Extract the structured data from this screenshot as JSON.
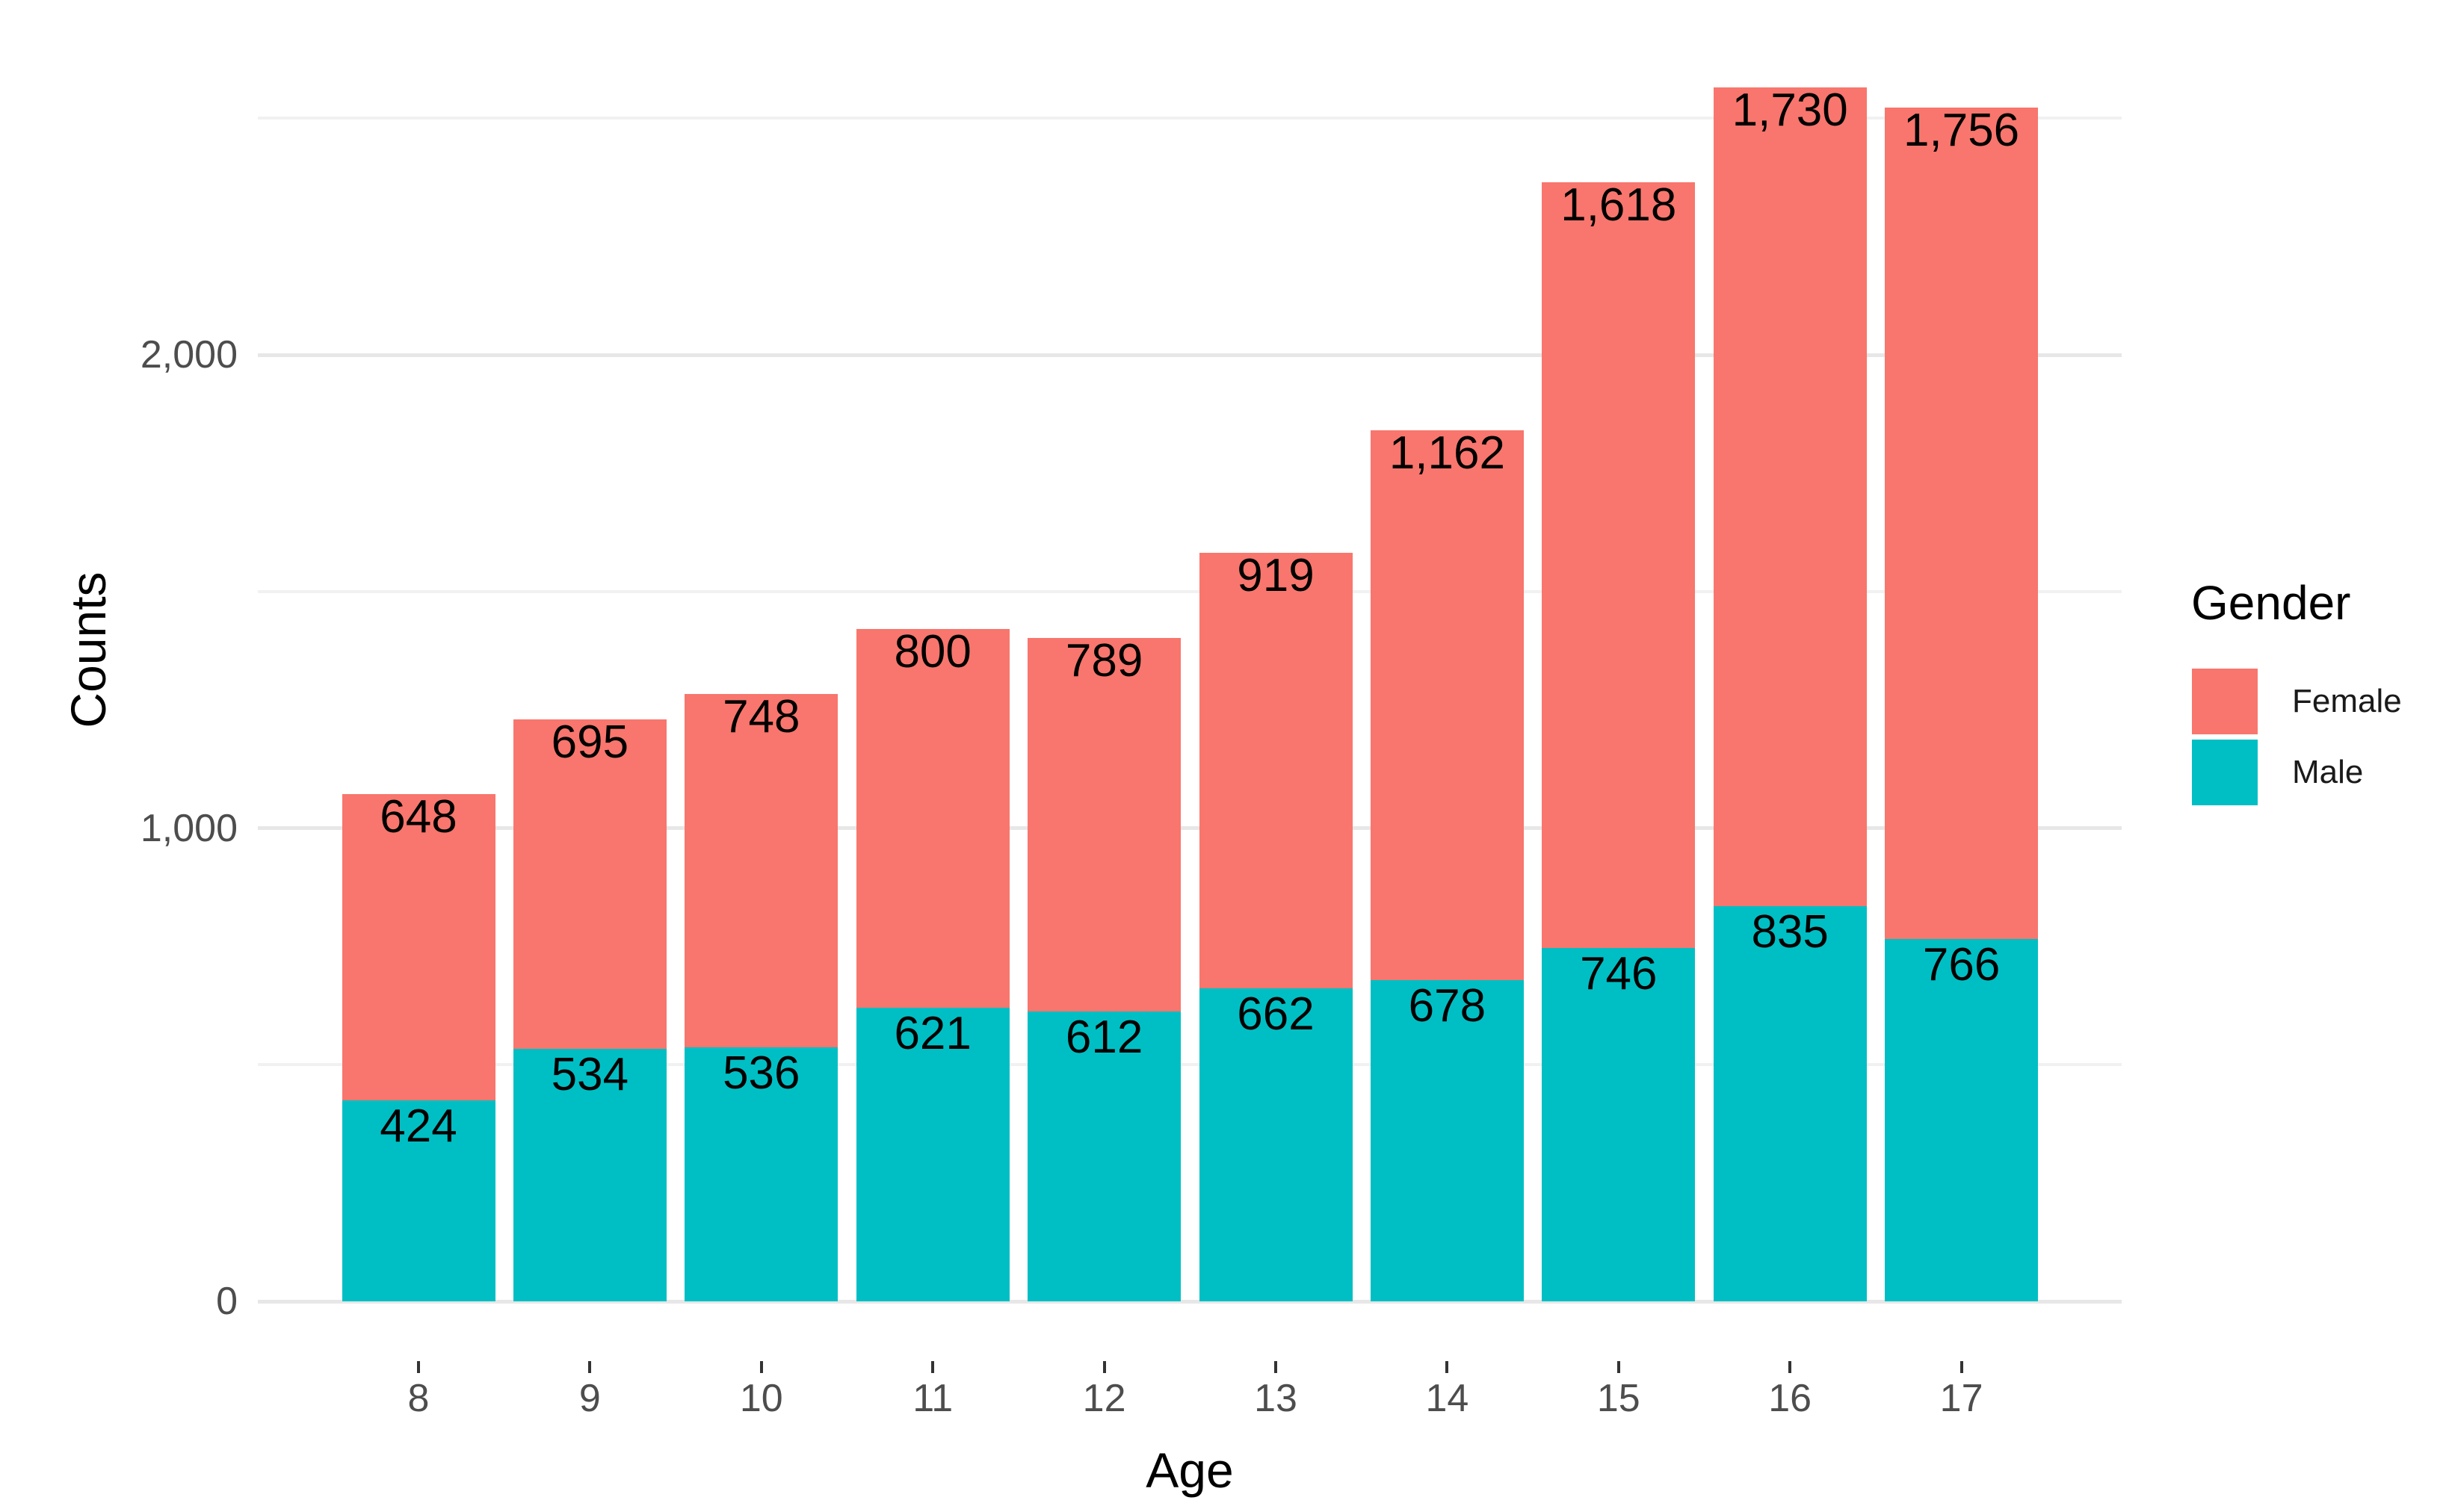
{
  "chart_data": {
    "type": "bar",
    "stacked": true,
    "orientation": "vertical",
    "title": "",
    "xlabel": "Age",
    "ylabel": "Counts",
    "categories": [
      "8",
      "9",
      "10",
      "11",
      "12",
      "13",
      "14",
      "15",
      "16",
      "17"
    ],
    "series": [
      {
        "name": "Male",
        "color": "#00BFC4",
        "values": [
          424,
          534,
          536,
          621,
          612,
          662,
          678,
          746,
          835,
          766
        ],
        "value_labels": [
          "424",
          "534",
          "536",
          "621",
          "612",
          "662",
          "678",
          "746",
          "835",
          "766"
        ]
      },
      {
        "name": "Female",
        "color": "#F8766D",
        "values": [
          648,
          695,
          748,
          800,
          789,
          919,
          1162,
          1618,
          1730,
          1756
        ],
        "value_labels": [
          "648",
          "695",
          "748",
          "800",
          "789",
          "919",
          "1,162",
          "1,618",
          "1,730",
          "1,756"
        ]
      }
    ],
    "stack_order_bottom_to_top": [
      "Male",
      "Female"
    ],
    "totals": [
      1072,
      1229,
      1284,
      1421,
      1401,
      1581,
      1840,
      2364,
      2565,
      2522
    ],
    "y_axis": {
      "range": [
        0,
        2700
      ],
      "major_ticks": [
        {
          "value": 0,
          "label": "0"
        },
        {
          "value": 1000,
          "label": "1,000"
        },
        {
          "value": 2000,
          "label": "2,000"
        }
      ],
      "minor_gridlines": [
        500,
        1500,
        2500
      ]
    },
    "legend": {
      "title": "Gender",
      "position": "right",
      "entries": [
        {
          "label": "Female",
          "color": "#F8766D"
        },
        {
          "label": "Male",
          "color": "#00BFC4"
        }
      ]
    },
    "grid": "on",
    "background": "#FFFFFF"
  }
}
